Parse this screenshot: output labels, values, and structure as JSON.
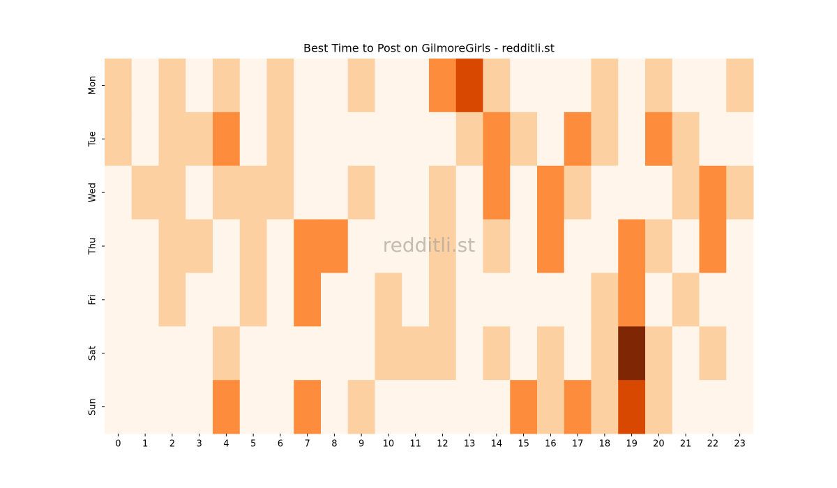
{
  "chart_data": {
    "type": "heatmap",
    "title": "Best Time to Post on GilmoreGirls - redditli.st",
    "watermark": "redditli.st",
    "x": [
      "0",
      "1",
      "2",
      "3",
      "4",
      "5",
      "6",
      "7",
      "8",
      "9",
      "10",
      "11",
      "12",
      "13",
      "14",
      "15",
      "16",
      "17",
      "18",
      "19",
      "20",
      "21",
      "22",
      "23"
    ],
    "y": [
      "Mon",
      "Tue",
      "Wed",
      "Thu",
      "Fri",
      "Sat",
      "Sun"
    ],
    "colors": [
      "#fff5eb",
      "#fdd0a2",
      "#fd8d3c",
      "#d94801",
      "#7f2704"
    ],
    "values": [
      [
        1,
        0,
        1,
        0,
        1,
        0,
        1,
        0,
        0,
        1,
        0,
        0,
        2,
        3,
        1,
        0,
        0,
        0,
        1,
        0,
        1,
        0,
        0,
        1
      ],
      [
        1,
        0,
        1,
        1,
        2,
        0,
        1,
        0,
        0,
        0,
        0,
        0,
        0,
        1,
        2,
        1,
        0,
        2,
        1,
        0,
        2,
        1,
        0,
        0
      ],
      [
        0,
        1,
        1,
        0,
        1,
        1,
        1,
        0,
        0,
        1,
        0,
        0,
        1,
        0,
        2,
        0,
        2,
        1,
        0,
        0,
        0,
        1,
        2,
        1
      ],
      [
        0,
        0,
        1,
        1,
        0,
        1,
        0,
        2,
        2,
        0,
        0,
        0,
        1,
        0,
        1,
        0,
        2,
        0,
        0,
        2,
        1,
        0,
        2,
        0
      ],
      [
        0,
        0,
        1,
        0,
        0,
        1,
        0,
        2,
        0,
        0,
        1,
        0,
        1,
        0,
        0,
        0,
        0,
        0,
        1,
        2,
        0,
        1,
        0,
        0
      ],
      [
        0,
        0,
        0,
        0,
        1,
        0,
        0,
        0,
        0,
        0,
        1,
        1,
        1,
        0,
        1,
        0,
        1,
        0,
        1,
        4,
        1,
        0,
        1,
        0
      ],
      [
        0,
        0,
        0,
        0,
        2,
        0,
        0,
        2,
        0,
        1,
        0,
        0,
        0,
        0,
        0,
        2,
        1,
        2,
        1,
        3,
        1,
        0,
        0,
        0
      ]
    ]
  }
}
